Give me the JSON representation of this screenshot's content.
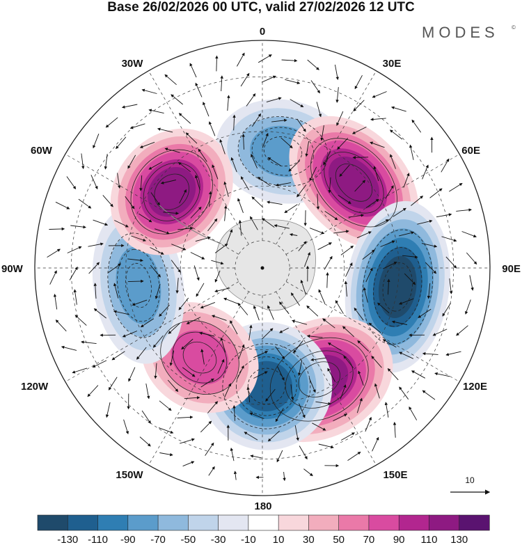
{
  "title": "Base 26/02/2026 00 UTC, valid 27/02/2026 12 UTC",
  "brand": "MODES",
  "brand_mark": "©",
  "map": {
    "projection": "south-polar-stereographic",
    "longitude_labels": [
      "0",
      "30E",
      "60E",
      "90E",
      "120E",
      "150E",
      "180",
      "150W",
      "120W",
      "90W",
      "60W",
      "30W"
    ],
    "reference_vector_label": "10",
    "anomaly_centres": [
      {
        "lon": 10,
        "sign": "negative",
        "peak": -75,
        "name": "south-atlantic-low"
      },
      {
        "lon": 47,
        "sign": "positive",
        "peak": 120,
        "name": "south-indian-high"
      },
      {
        "lon": 98,
        "sign": "negative",
        "peak": -135,
        "name": "east-indian-low"
      },
      {
        "lon": 153,
        "sign": "positive",
        "peak": 115,
        "name": "tasman-high"
      },
      {
        "lon": 178,
        "sign": "negative",
        "peak": -110,
        "name": "ross-sea-low"
      },
      {
        "lon": 215,
        "sign": "positive",
        "peak": 75,
        "name": "south-pacific-high"
      },
      {
        "lon": 262,
        "sign": "negative",
        "peak": -75,
        "name": "amundsen-low"
      },
      {
        "lon": 310,
        "sign": "positive",
        "peak": 115,
        "name": "south-american-high"
      }
    ]
  },
  "colorbar": {
    "ticks": [
      "-130",
      "-110",
      "-90",
      "-70",
      "-50",
      "-30",
      "-10",
      "10",
      "30",
      "50",
      "70",
      "90",
      "110",
      "130"
    ],
    "colors": [
      "#1f4a6b",
      "#1f5f8f",
      "#2f7eb3",
      "#5b9ccb",
      "#8fb9dd",
      "#c0d4ea",
      "#e3e6f1",
      "#ffffff",
      "#f8d7dc",
      "#f2adbd",
      "#ea79a8",
      "#d94ba0",
      "#b2268f",
      "#8e1a82",
      "#5a1370"
    ]
  }
}
